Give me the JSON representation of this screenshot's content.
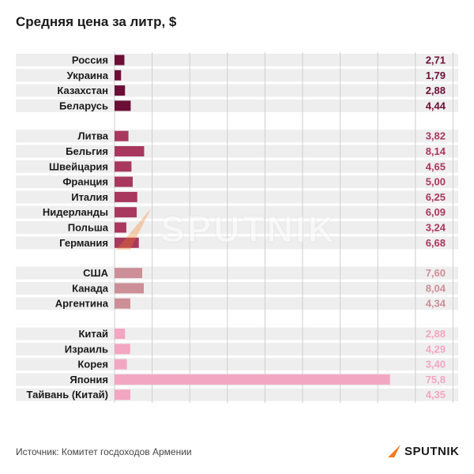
{
  "header": {
    "title": "Средняя цена за литр, $"
  },
  "footer": {
    "source": "Источник: Комитет госдоходов Армении",
    "logo_text": "SPUTNIK"
  },
  "watermark": {
    "text": "SPUTNIK"
  },
  "colors": {
    "group1": "#6b0f37",
    "group2": "#a8385d",
    "group3": "#cc8f97",
    "group4": "#f2a6c2",
    "row_band": "#eeeeee",
    "grid": "#cfcfcf",
    "accent": "#f47b20"
  },
  "icons": {
    "logo": "sputnik-arrow-icon"
  },
  "chart_data": {
    "type": "bar",
    "orientation": "horizontal",
    "title": "Средняя цена за литр, $",
    "xlabel": "",
    "ylabel": "",
    "grid": true,
    "groups": [
      {
        "color": "#6b0f37",
        "items": [
          {
            "label": "Россия",
            "value": 2.71,
            "value_label": "2,71"
          },
          {
            "label": "Украина",
            "value": 1.79,
            "value_label": "1,79"
          },
          {
            "label": "Казахстан",
            "value": 2.88,
            "value_label": "2,88"
          },
          {
            "label": "Беларусь",
            "value": 4.44,
            "value_label": "4,44"
          }
        ]
      },
      {
        "color": "#a8385d",
        "items": [
          {
            "label": "Литва",
            "value": 3.82,
            "value_label": "3,82"
          },
          {
            "label": "Бельгия",
            "value": 8.14,
            "value_label": "8,14"
          },
          {
            "label": "Швейцария",
            "value": 4.65,
            "value_label": "4,65"
          },
          {
            "label": "Франция",
            "value": 5.0,
            "value_label": "5,00"
          },
          {
            "label": "Италия",
            "value": 6.25,
            "value_label": "6,25"
          },
          {
            "label": "Нидерланды",
            "value": 6.09,
            "value_label": "6,09"
          },
          {
            "label": "Польша",
            "value": 3.24,
            "value_label": "3,24"
          },
          {
            "label": "Германия",
            "value": 6.68,
            "value_label": "6,68"
          }
        ]
      },
      {
        "color": "#cc8f97",
        "items": [
          {
            "label": "США",
            "value": 7.6,
            "value_label": "7,60"
          },
          {
            "label": "Канада",
            "value": 8.04,
            "value_label": "8,04"
          },
          {
            "label": "Аргентина",
            "value": 4.34,
            "value_label": "4,34"
          }
        ]
      },
      {
        "color": "#f2a6c2",
        "items": [
          {
            "label": "Китай",
            "value": 2.88,
            "value_label": "2,88"
          },
          {
            "label": "Израиль",
            "value": 4.29,
            "value_label": "4,29"
          },
          {
            "label": "Корея",
            "value": 3.4,
            "value_label": "3,40"
          },
          {
            "label": "Япония",
            "value": 75.8,
            "value_label": "75,8"
          },
          {
            "label": "Тайвань (Китай)",
            "value": 4.35,
            "value_label": "4,35"
          }
        ]
      }
    ]
  }
}
